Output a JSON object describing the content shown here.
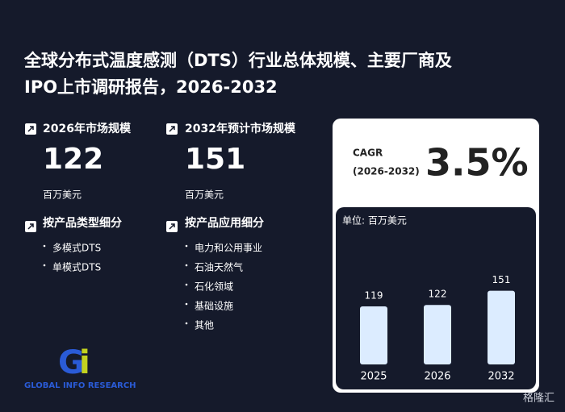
{
  "title_line1": "全球分布式温度感测（DTS）行业总体规模、主要厂商及",
  "title_line2": "IPO上市调研报告，2026-2032",
  "stat_2026": {
    "label": "2026年市场规模",
    "value": 122,
    "unit": "百万美元"
  },
  "stat_2032": {
    "label": "2032年预计市场规模",
    "value": 151,
    "unit": "百万美元"
  },
  "by_type": {
    "heading": "按产品类型细分",
    "items": [
      "多模式DTS",
      "单模式DTS"
    ]
  },
  "by_application": {
    "heading": "按产品应用细分",
    "items": [
      "电力和公用事业",
      "石油天然气",
      "石化领域",
      "基础设施",
      "其他"
    ]
  },
  "cagr": {
    "label": "CAGR",
    "period": "(2026-2032)",
    "value": "3.5%"
  },
  "logo": "GLOBAL INFO RESEARCH",
  "watermark": "格隆汇",
  "chart_data": {
    "type": "bar",
    "subtitle": "单位: 百万美元",
    "categories": [
      "2025",
      "2026",
      "2032"
    ],
    "values": [
      119,
      122,
      151
    ],
    "color": "#dcecff",
    "ylim": [
      0,
      200
    ]
  }
}
